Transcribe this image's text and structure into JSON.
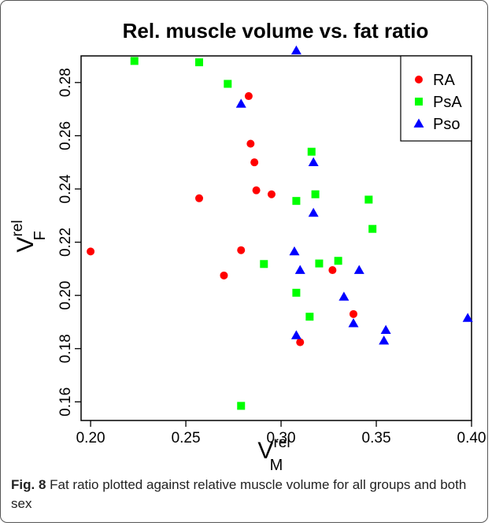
{
  "caption": {
    "label": "Fig. 8",
    "text": "Fat ratio plotted against relative muscle volume for all groups and both sex"
  },
  "chart_data": {
    "type": "scatter",
    "title": "Rel. muscle volume vs. fat ratio",
    "xlabel": {
      "base": "V",
      "sup": "rel",
      "sub": "M"
    },
    "ylabel": {
      "base": "V",
      "sup": "rel",
      "sub": "F"
    },
    "xlim": [
      0.195,
      0.4
    ],
    "ylim": [
      0.153,
      0.29
    ],
    "xticks": [
      "0.20",
      "0.25",
      "0.30",
      "0.35",
      "0.40"
    ],
    "yticks": [
      "0.16",
      "0.18",
      "0.20",
      "0.22",
      "0.24",
      "0.26",
      "0.28"
    ],
    "grid": false,
    "legend_position": "top-right",
    "series": [
      {
        "name": "RA",
        "marker": "circle",
        "color": "#ff0000",
        "points": [
          [
            0.2,
            0.2165
          ],
          [
            0.257,
            0.2365
          ],
          [
            0.27,
            0.2075
          ],
          [
            0.279,
            0.217
          ],
          [
            0.283,
            0.2749
          ],
          [
            0.284,
            0.257
          ],
          [
            0.286,
            0.25
          ],
          [
            0.287,
            0.2395
          ],
          [
            0.295,
            0.238
          ],
          [
            0.31,
            0.1824
          ],
          [
            0.327,
            0.2095
          ],
          [
            0.338,
            0.193
          ]
        ]
      },
      {
        "name": "PsA",
        "marker": "square",
        "color": "#00ff00",
        "points": [
          [
            0.223,
            0.2881
          ],
          [
            0.257,
            0.2876
          ],
          [
            0.272,
            0.2795
          ],
          [
            0.279,
            0.1585
          ],
          [
            0.291,
            0.2118
          ],
          [
            0.308,
            0.2355
          ],
          [
            0.308,
            0.201
          ],
          [
            0.315,
            0.192
          ],
          [
            0.316,
            0.254
          ],
          [
            0.318,
            0.238
          ],
          [
            0.32,
            0.212
          ],
          [
            0.33,
            0.213
          ],
          [
            0.346,
            0.236
          ],
          [
            0.348,
            0.225
          ]
        ]
      },
      {
        "name": "Pso",
        "marker": "triangle",
        "color": "#0000ff",
        "points": [
          [
            0.279,
            0.272
          ],
          [
            0.307,
            0.2165
          ],
          [
            0.308,
            0.292
          ],
          [
            0.308,
            0.185
          ],
          [
            0.31,
            0.2095
          ],
          [
            0.317,
            0.231
          ],
          [
            0.317,
            0.25
          ],
          [
            0.333,
            0.1995
          ],
          [
            0.338,
            0.1895
          ],
          [
            0.341,
            0.2095
          ],
          [
            0.354,
            0.183
          ],
          [
            0.355,
            0.187
          ],
          [
            0.398,
            0.1915
          ]
        ]
      }
    ]
  }
}
